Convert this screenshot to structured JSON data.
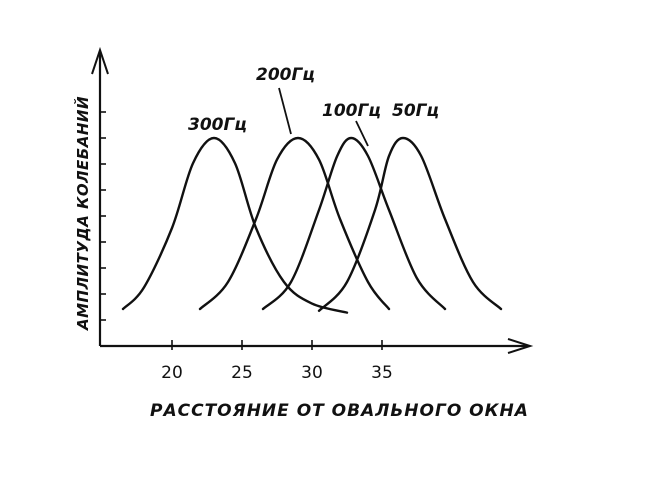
{
  "chart_data": {
    "type": "line",
    "title": "",
    "ylabel": "АМПЛИТУДА КОЛЕБАНИЙ",
    "xlabel": "РАССТОЯНИЕ ОТ ОВАЛЬНОГО ОКНА",
    "x_ticks": [
      "20",
      "25",
      "30",
      "35"
    ],
    "x_tick_values": [
      20,
      25,
      30,
      35
    ],
    "xlim": [
      15,
      45
    ],
    "ylim": [
      0,
      1
    ],
    "y_ticks_labeled": false,
    "grid": false,
    "line_color": "#111111",
    "series": [
      {
        "name": "300Гц",
        "peak_x": 23,
        "x": [
          16.5,
          18,
          20,
          21.5,
          23,
          24.5,
          26,
          28,
          30,
          32.5
        ],
        "y": [
          0.05,
          0.17,
          0.5,
          0.86,
          1.0,
          0.86,
          0.5,
          0.2,
          0.08,
          0.03
        ]
      },
      {
        "name": "200Гц",
        "peak_x": 29,
        "x": [
          22,
          24,
          26,
          27.5,
          29,
          30.5,
          32,
          34,
          35.5
        ],
        "y": [
          0.05,
          0.2,
          0.55,
          0.88,
          1.0,
          0.88,
          0.55,
          0.2,
          0.05
        ]
      },
      {
        "name": "100Гц",
        "peak_x": 32.8,
        "x": [
          26.5,
          28.5,
          30.5,
          31.8,
          32.8,
          34,
          35.5,
          37.5,
          39.5
        ],
        "y": [
          0.05,
          0.2,
          0.6,
          0.9,
          1.0,
          0.9,
          0.6,
          0.22,
          0.05
        ]
      },
      {
        "name": "50Гц",
        "peak_x": 36.5,
        "x": [
          30.5,
          32.5,
          34.5,
          35.5,
          36.5,
          37.8,
          39.5,
          41.5,
          43.5
        ],
        "y": [
          0.04,
          0.2,
          0.6,
          0.9,
          1.0,
          0.9,
          0.55,
          0.2,
          0.05
        ]
      }
    ]
  }
}
